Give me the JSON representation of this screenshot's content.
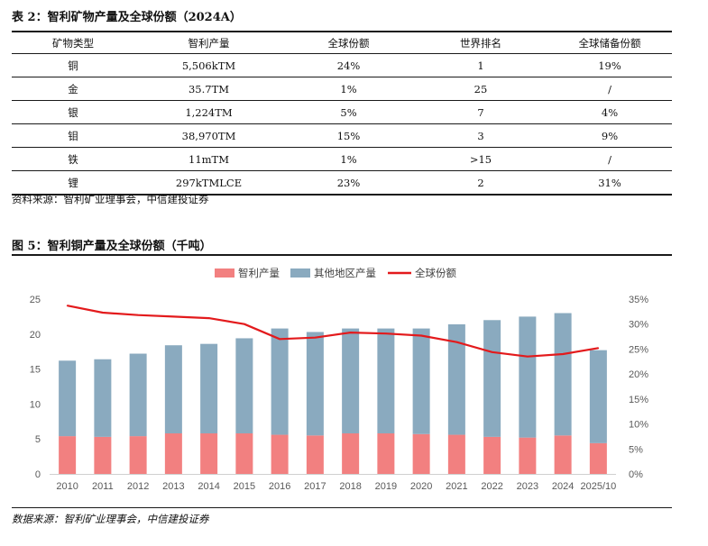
{
  "table": {
    "title": "表 2：智利矿物产量及全球份额（2024A）",
    "headers": [
      "矿物类型",
      "智利产量",
      "全球份额",
      "世界排名",
      "全球储备份额"
    ],
    "rows": [
      [
        "铜",
        "5,506kTM",
        "24%",
        "1",
        "19%"
      ],
      [
        "金",
        "35.7TM",
        "1%",
        "25",
        "/"
      ],
      [
        "银",
        "1,224TM",
        "5%",
        "7",
        "4%"
      ],
      [
        "钼",
        "38,970TM",
        "15%",
        "3",
        "9%"
      ],
      [
        "铁",
        "11mTM",
        "1%",
        ">15",
        "/"
      ],
      [
        "锂",
        "297kTMLCE",
        "23%",
        "2",
        "31%"
      ]
    ],
    "source": "资料来源：智利矿业理事会，中信建投证券"
  },
  "figure": {
    "title": "图 5：智利铜产量及全球份额（千吨）",
    "source": "数据来源：智利矿业理事会，中信建投证券"
  },
  "colors": {
    "chile": "#f28080",
    "other": "#8aaabf",
    "share": "#e31a1c"
  },
  "chart_data": {
    "type": "bar",
    "stacked": true,
    "categories": [
      "2010",
      "2011",
      "2012",
      "2013",
      "2014",
      "2015",
      "2016",
      "2017",
      "2018",
      "2019",
      "2020",
      "2021",
      "2022",
      "2023",
      "2024",
      "2025/10"
    ],
    "series": [
      {
        "name": "智利产量",
        "axis": "left",
        "values": [
          5.4,
          5.3,
          5.4,
          5.8,
          5.8,
          5.8,
          5.6,
          5.5,
          5.8,
          5.8,
          5.7,
          5.6,
          5.3,
          5.2,
          5.5,
          4.4
        ]
      },
      {
        "name": "其他地区产量",
        "axis": "left",
        "values": [
          10.8,
          11.1,
          11.8,
          12.6,
          12.8,
          13.6,
          15.2,
          14.8,
          15.0,
          15.0,
          15.1,
          15.8,
          16.7,
          17.3,
          17.5,
          13.3
        ]
      },
      {
        "name": "全球份额",
        "type": "line",
        "axis": "right",
        "values": [
          33.7,
          32.3,
          31.8,
          31.5,
          31.2,
          30.0,
          27.0,
          27.3,
          28.3,
          28.1,
          27.7,
          26.4,
          24.4,
          23.5,
          24.0,
          25.2
        ]
      }
    ],
    "yleft": {
      "min": 0,
      "max": 25,
      "ticks": [
        "0",
        "5",
        "10",
        "15",
        "20",
        "25"
      ]
    },
    "yright": {
      "min": 0,
      "max": 35,
      "ticks": [
        "0%",
        "5%",
        "10%",
        "15%",
        "20%",
        "25%",
        "30%",
        "35%"
      ]
    },
    "legend": "top-center"
  }
}
